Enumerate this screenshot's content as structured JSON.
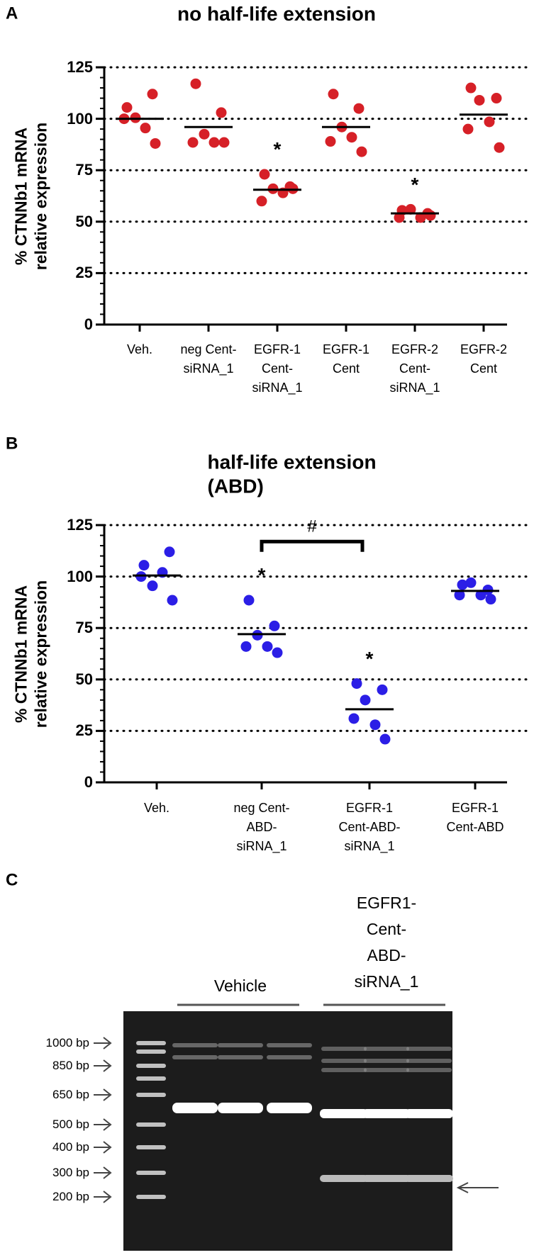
{
  "chart_data": [
    {
      "panel": "A",
      "type": "strip",
      "title": "no half-life extension",
      "y_label": "% CTNNb1 mRNA\nrelative expression",
      "categories": [
        "Veh.",
        "neg Cent-\nsiRNA_1",
        "EGFR-1\nCent-\nsiRNA_1",
        "EGFR-1\nCent",
        "EGFR-2\nCent-\nsiRNA_1",
        "EGFR-2\nCent"
      ],
      "values": [
        [
          105.5,
          112,
          100.5,
          95.5,
          100,
          88
        ],
        [
          117,
          103,
          92.5,
          88.5,
          88.5,
          88.5
        ],
        [
          73,
          67,
          66,
          64,
          60,
          66
        ],
        [
          112,
          105,
          96,
          91,
          89,
          84
        ],
        [
          55.5,
          54,
          56,
          52,
          52,
          53
        ],
        [
          115,
          110,
          109,
          98.5,
          95,
          86
        ]
      ],
      "means": [
        100,
        96,
        65.5,
        96,
        54,
        102
      ],
      "significance": [
        null,
        null,
        "*",
        null,
        "*",
        null
      ],
      "color": "#d62027",
      "ylim": [
        0,
        125
      ],
      "yticks": [
        0,
        25,
        50,
        75,
        100,
        125
      ],
      "grid": true
    },
    {
      "panel": "B",
      "type": "strip",
      "title": "half-life extension (ABD)",
      "y_label": "% CTNNb1 mRNA\nrelative expression",
      "categories": [
        "Veh.",
        "neg Cent-\nABD-\nsiRNA_1",
        "EGFR-1\nCent-ABD-\nsiRNA_1",
        "EGFR-1\nCent-ABD"
      ],
      "values": [
        [
          105.5,
          112,
          95.5,
          102,
          100,
          88.5
        ],
        [
          88.5,
          76,
          71.5,
          66,
          66,
          63
        ],
        [
          48,
          45,
          40,
          28,
          31,
          21
        ],
        [
          96,
          93.5,
          97,
          91,
          91,
          89
        ]
      ],
      "means": [
        100.5,
        72,
        35.5,
        93
      ],
      "significance": [
        null,
        "*",
        "*",
        null
      ],
      "bracket_label": "#",
      "color": "#2b1ee6",
      "ylim": [
        0,
        125
      ],
      "yticks": [
        0,
        25,
        50,
        75,
        100,
        125
      ],
      "grid": true
    }
  ],
  "gel_panel": {
    "panel": "C",
    "lane_groups": [
      "Vehicle",
      "EGFR1-\nCent-\nABD-\nsiRNA_1"
    ],
    "ladder_labels": [
      "1000 bp",
      "850 bp",
      "650 bp",
      "500 bp",
      "400 bp",
      "300 bp",
      "200 bp"
    ]
  }
}
